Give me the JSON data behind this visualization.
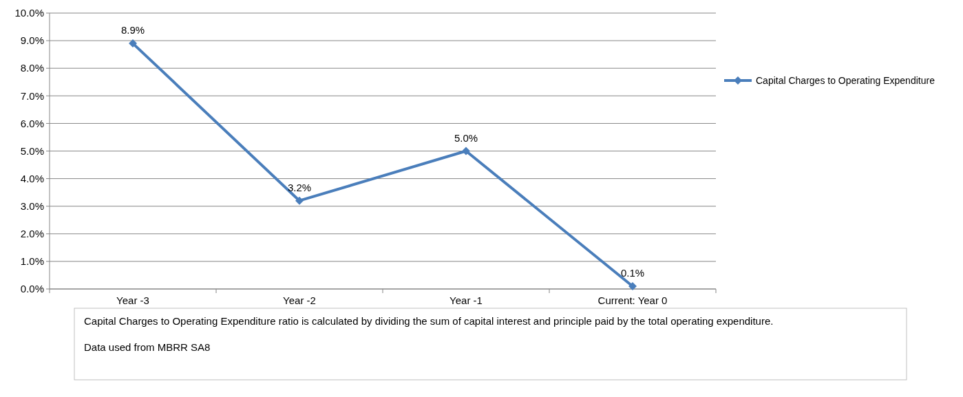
{
  "chart_data": {
    "type": "line",
    "categories": [
      "Year -3",
      "Year -2",
      "Year -1",
      "Current: Year 0"
    ],
    "series": [
      {
        "name": "Capital Charges to Operating Expenditure",
        "color": "#4a7ebb",
        "values": [
          8.9,
          3.2,
          5.0,
          0.1
        ],
        "value_labels": [
          "8.9%",
          "3.2%",
          "5.0%",
          "0.1%"
        ]
      }
    ],
    "ylim": [
      0,
      10
    ],
    "yticks": [
      {
        "value": 0,
        "label": "0.0%"
      },
      {
        "value": 1,
        "label": "1.0%"
      },
      {
        "value": 2,
        "label": "2.0%"
      },
      {
        "value": 3,
        "label": "3.0%"
      },
      {
        "value": 4,
        "label": "4.0%"
      },
      {
        "value": 5,
        "label": "5.0%"
      },
      {
        "value": 6,
        "label": "6.0%"
      },
      {
        "value": 7,
        "label": "7.0%"
      },
      {
        "value": 8,
        "label": "8.0%"
      },
      {
        "value": 9,
        "label": "9.0%"
      },
      {
        "value": 10,
        "label": "10.0%"
      }
    ],
    "grid": "y",
    "legend": "right",
    "marker": "diamond",
    "line_style": "solid",
    "annotations": [
      "Capital Charges to Operating Expenditure ratio is calculated by dividing the sum of capital interest and principle paid by the total operating expenditure.",
      "Data used from MBRR SA8"
    ]
  }
}
